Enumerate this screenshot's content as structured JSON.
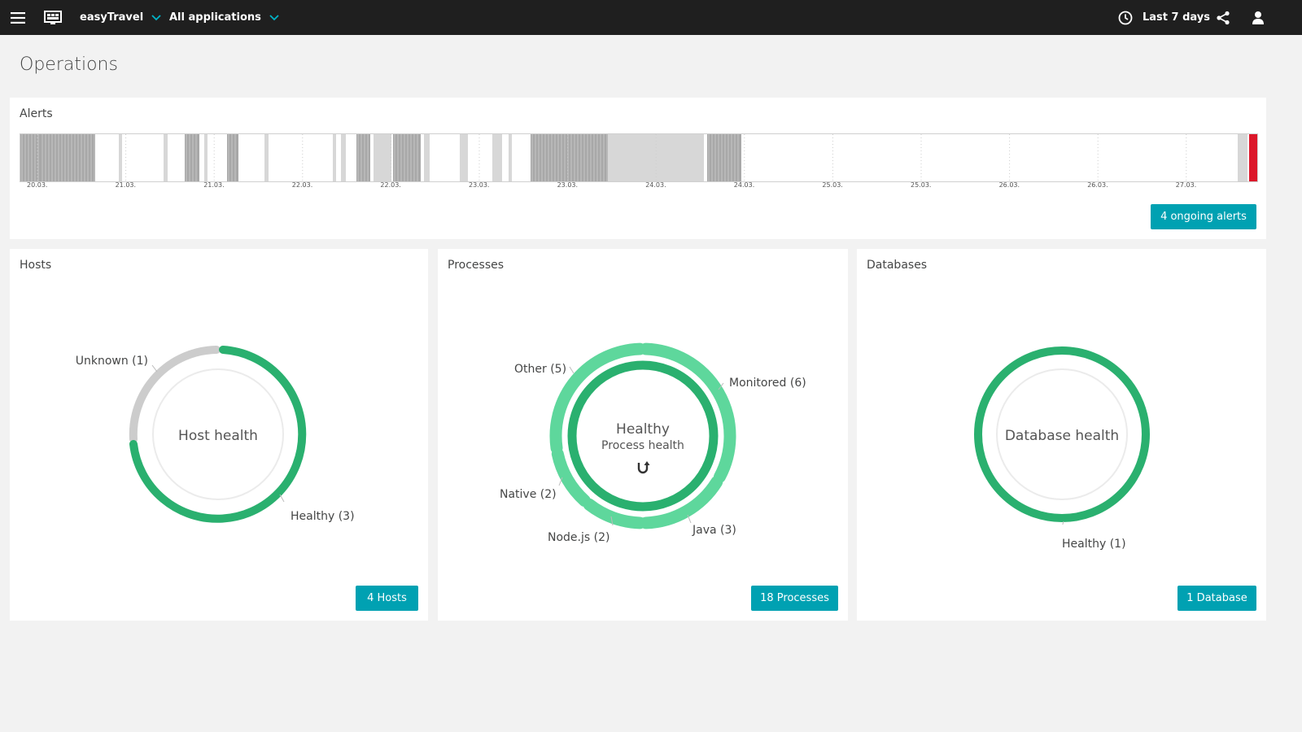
{
  "topbar": {
    "app_name": "easyTravel",
    "apps_filter": "All applications",
    "timeframe": "Last 7 days",
    "icons": [
      "menu-icon",
      "dashboard-icon",
      "chevron-down-icon",
      "clock-icon",
      "share-icon",
      "user-icon"
    ]
  },
  "page": {
    "title": "Operations"
  },
  "alerts": {
    "title": "Alerts",
    "date_labels": [
      "20.03.",
      "21.03.",
      "21.03.",
      "22.03.",
      "22.03.",
      "23.03.",
      "23.03.",
      "24.03.",
      "24.03.",
      "25.03.",
      "25.03.",
      "26.03.",
      "26.03.",
      "27.03."
    ],
    "ongoing_button": "4 ongoing alerts",
    "colors": {
      "alert_dark": "#a8a8a8",
      "alert_light": "#d7d7d7",
      "alert_open": "#dc172a"
    }
  },
  "hosts": {
    "title": "Hosts",
    "center_label": "Host health",
    "segments": [
      {
        "label": "Unknown (1)",
        "count": 1,
        "color": "#cccccc"
      },
      {
        "label": "Healthy (3)",
        "count": 3,
        "color": "#2ab06f"
      }
    ],
    "button": "4 Hosts"
  },
  "processes": {
    "title": "Processes",
    "center_status": "Healthy",
    "center_label": "Process health",
    "refresh_icon": "refresh-icon",
    "segments": [
      {
        "label": "Monitored (6)",
        "count": 6
      },
      {
        "label": "Java (3)",
        "count": 3
      },
      {
        "label": "Node.js (2)",
        "count": 2
      },
      {
        "label": "Native (2)",
        "count": 2
      },
      {
        "label": "Other (5)",
        "count": 5
      }
    ],
    "colors": {
      "outer": "#5ed79c",
      "inner": "#2ab06f"
    },
    "button": "18 Processes"
  },
  "databases": {
    "title": "Databases",
    "center_label": "Database health",
    "segments": [
      {
        "label": "Healthy (1)",
        "count": 1,
        "color": "#2ab06f"
      }
    ],
    "button": "1 Database"
  }
}
